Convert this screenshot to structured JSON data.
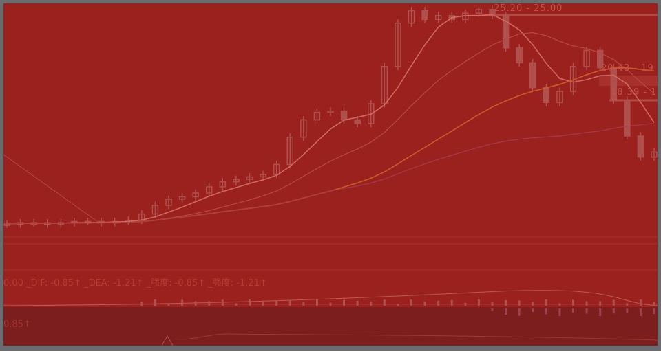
{
  "colors": {
    "background": "#9b211f",
    "lower_panel": "#7c1e1e",
    "frame": "#6a6d6f",
    "candle": "#b0504c",
    "ma_short": "#d06a60",
    "ma_mid": "#b84a40",
    "ma_long": "#cc5a2a",
    "ma_longest": "#a83a4a"
  },
  "chart_data": {
    "type": "candlestick",
    "title": "",
    "xlabel": "",
    "ylabel": "",
    "ylim": [
      6.5,
      25.5
    ],
    "close": [
      7.8,
      7.9,
      7.9,
      7.8,
      7.9,
      8.0,
      8.0,
      7.9,
      8.0,
      8.1,
      8.6,
      9.3,
      9.8,
      10.0,
      10.3,
      10.8,
      11.2,
      11.4,
      11.6,
      11.8,
      12.6,
      14.8,
      16.2,
      16.8,
      16.9,
      16.2,
      15.9,
      17.5,
      20.5,
      24.0,
      25.0,
      24.3,
      24.6,
      24.3,
      24.8,
      25.1,
      24.6,
      22.0,
      20.8,
      18.8,
      17.6,
      18.5,
      20.5,
      21.8,
      20.4,
      17.8,
      14.9,
      13.2,
      13.6
    ],
    "price_annotations": [
      "25.20 - 25.00",
      "20.43 - 19",
      "18.39 - 1"
    ]
  },
  "indicator": {
    "legend": "0.00  _DIF: -0.85↑  _DEA: -1.21↑  _强度: -0.85↑  _强度: -1.21↑",
    "lower_legend": "0.85↑"
  }
}
